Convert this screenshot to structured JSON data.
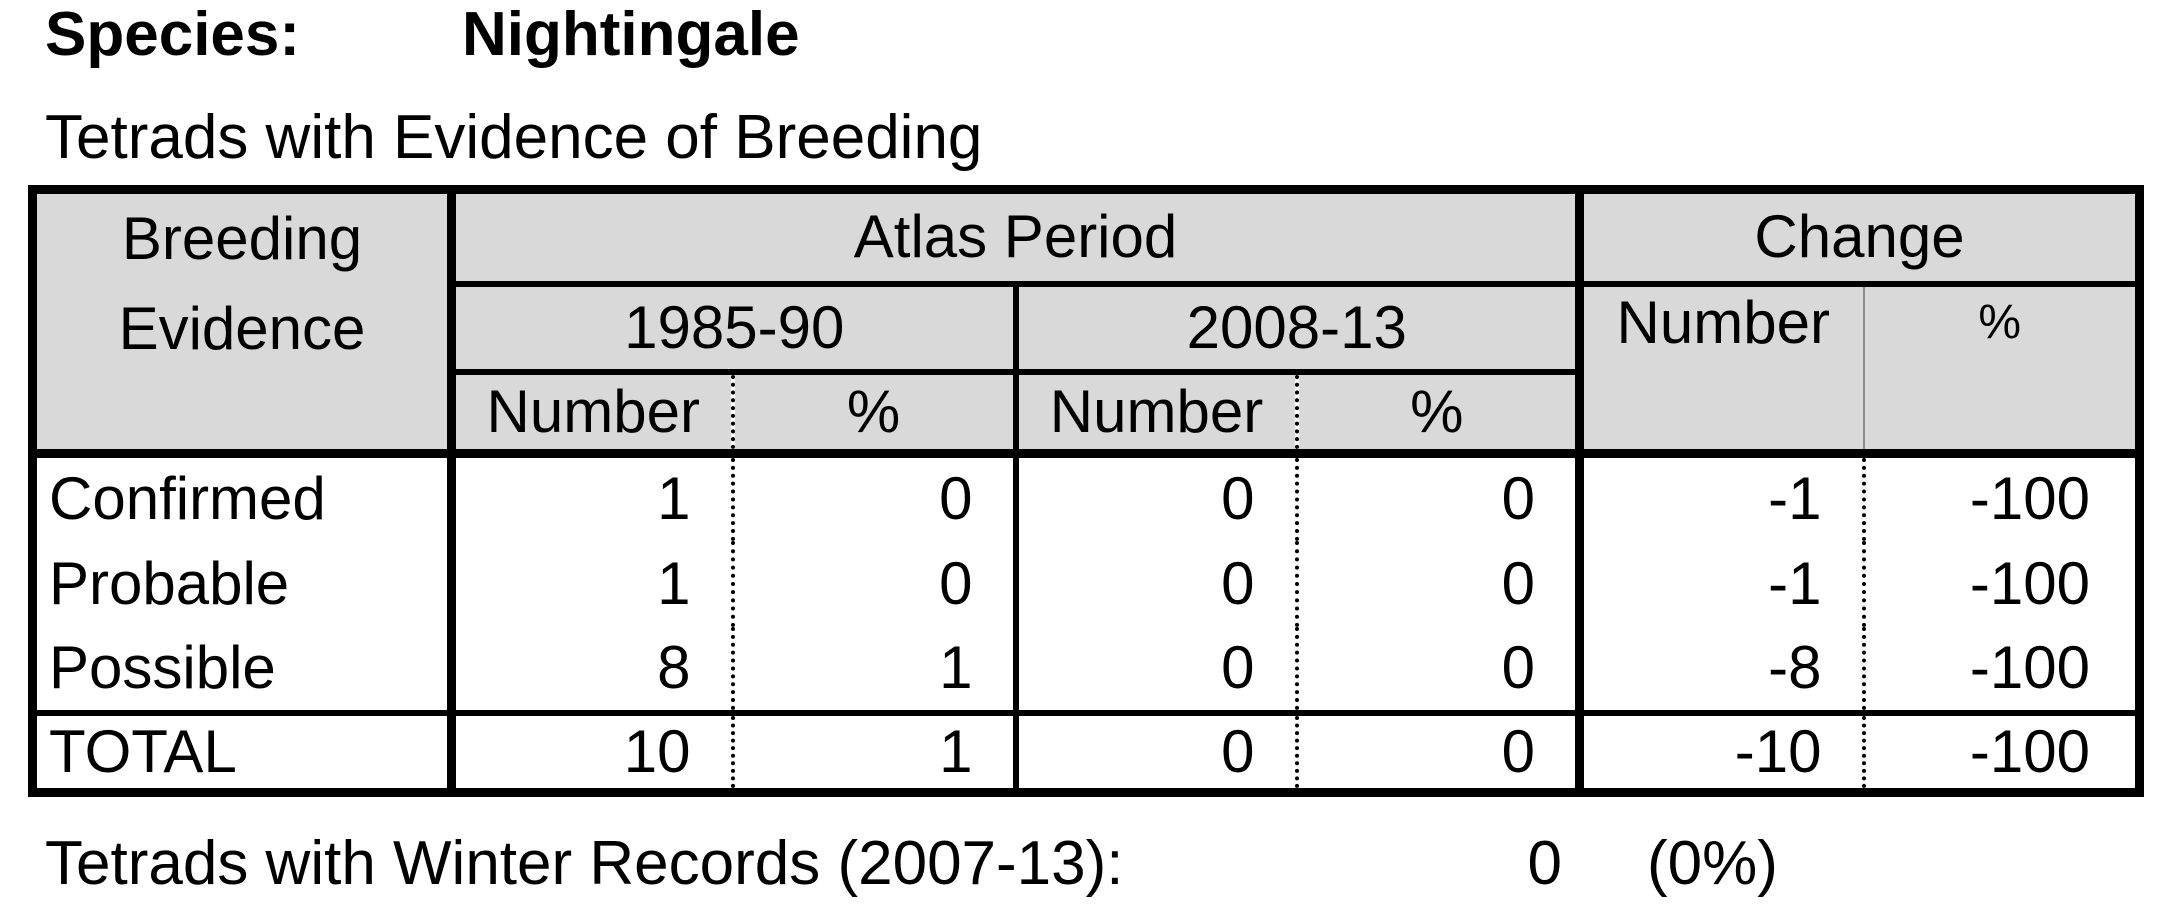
{
  "species": {
    "label": "Species:",
    "name": "Nightingale"
  },
  "subtitle": "Tetrads with Evidence of Breeding",
  "table": {
    "header": {
      "breeding_evidence_line1": "Breeding",
      "breeding_evidence_line2": "Evidence",
      "atlas_period": "Atlas Period",
      "change": "Change",
      "period1": "1985-90",
      "period2": "2008-13",
      "number": "Number",
      "percent": "%"
    },
    "rows": [
      {
        "label": "Confirmed",
        "p1_number": "1",
        "p1_percent": "0",
        "p2_number": "0",
        "p2_percent": "0",
        "change_number": "-1",
        "change_percent": "-100"
      },
      {
        "label": "Probable",
        "p1_number": "1",
        "p1_percent": "0",
        "p2_number": "0",
        "p2_percent": "0",
        "change_number": "-1",
        "change_percent": "-100"
      },
      {
        "label": "Possible",
        "p1_number": "8",
        "p1_percent": "1",
        "p2_number": "0",
        "p2_percent": "0",
        "change_number": "-8",
        "change_percent": "-100"
      }
    ],
    "total": {
      "label": "TOTAL",
      "p1_number": "10",
      "p1_percent": "1",
      "p2_number": "0",
      "p2_percent": "0",
      "change_number": "-10",
      "change_percent": "-100"
    }
  },
  "winter": {
    "label": "Tetrads with Winter Records (2007-13):",
    "count": "0",
    "percent": "(0%)"
  }
}
